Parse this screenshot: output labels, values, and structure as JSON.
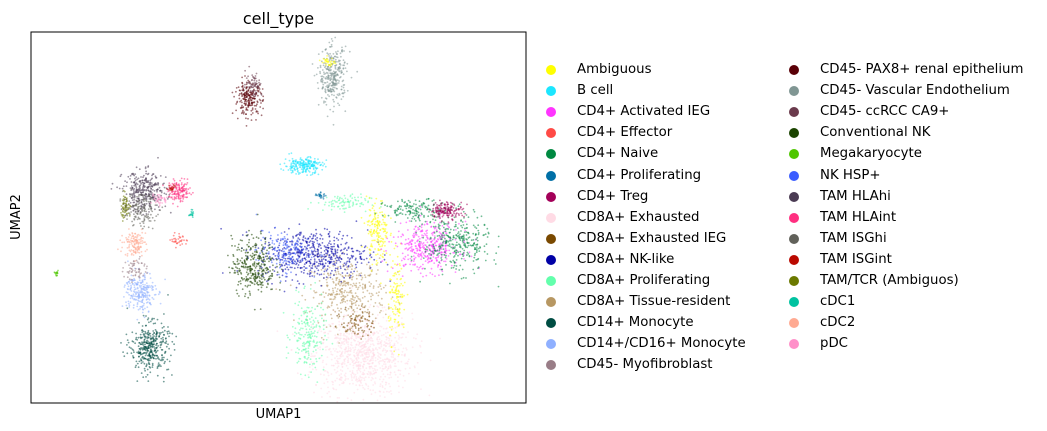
{
  "chart_data": {
    "type": "scatter",
    "title": "cell_type",
    "xlabel": "UMAP1",
    "ylabel": "UMAP2",
    "grid": false,
    "legend_position": "right",
    "xlim": [
      0,
      100
    ],
    "ylim": [
      0,
      100
    ],
    "legend": [
      {
        "name": "Ambiguous",
        "color": "#ffff00"
      },
      {
        "name": "B cell",
        "color": "#1ce6ff"
      },
      {
        "name": "CD4+ Activated IEG",
        "color": "#ff34ff"
      },
      {
        "name": "CD4+ Effector",
        "color": "#ff4a46"
      },
      {
        "name": "CD4+ Naive",
        "color": "#008941"
      },
      {
        "name": "CD4+ Proliferating",
        "color": "#006fa6"
      },
      {
        "name": "CD4+ Treg",
        "color": "#a30059"
      },
      {
        "name": "CD8A+ Exhausted",
        "color": "#ffdbe5"
      },
      {
        "name": "CD8A+ Exhausted IEG",
        "color": "#7a4900"
      },
      {
        "name": "CD8A+ NK-like",
        "color": "#0000a6"
      },
      {
        "name": "CD8A+ Proliferating",
        "color": "#63ffac"
      },
      {
        "name": "CD8A+ Tissue-resident",
        "color": "#b79762"
      },
      {
        "name": "CD14+ Monocyte",
        "color": "#004d43"
      },
      {
        "name": "CD14+/CD16+ Monocyte",
        "color": "#8fb0ff"
      },
      {
        "name": "CD45- Myofibroblast",
        "color": "#997d87"
      },
      {
        "name": "CD45- PAX8+ renal epithelium",
        "color": "#5a0007"
      },
      {
        "name": "CD45- Vascular Endothelium",
        "color": "#809693"
      },
      {
        "name": "CD45- ccRCC CA9+",
        "color": "#6a3a4c"
      },
      {
        "name": "Conventional NK",
        "color": "#1b4400"
      },
      {
        "name": "Megakaryocyte",
        "color": "#4fc601"
      },
      {
        "name": "NK HSP+",
        "color": "#3b5dff"
      },
      {
        "name": "TAM HLAhi",
        "color": "#4a3b53"
      },
      {
        "name": "TAM HLAint",
        "color": "#ff2f80"
      },
      {
        "name": "TAM ISGhi",
        "color": "#61615a"
      },
      {
        "name": "TAM ISGint",
        "color": "#ba0900"
      },
      {
        "name": "TAM/TCR (Ambiguos)",
        "color": "#6b7900"
      },
      {
        "name": "cDC1",
        "color": "#00c2a0"
      },
      {
        "name": "cDC2",
        "color": "#ffaa92"
      },
      {
        "name": "pDC",
        "color": "#ff90c9"
      }
    ],
    "clusters": [
      {
        "type": "CD8A+ Exhausted",
        "cx": 67,
        "cy": 13,
        "rx": 9,
        "ry": 10,
        "n": 900
      },
      {
        "type": "CD8A+ Tissue-resident",
        "cx": 64,
        "cy": 30,
        "rx": 7,
        "ry": 8,
        "n": 350
      },
      {
        "type": "CD8A+ Proliferating",
        "cx": 56,
        "cy": 18,
        "rx": 3,
        "ry": 9,
        "n": 200
      },
      {
        "type": "CD8A+ Proliferating",
        "cx": 63,
        "cy": 54,
        "rx": 5,
        "ry": 2,
        "n": 90
      },
      {
        "type": "CD8A+ NK-like",
        "cx": 57,
        "cy": 40,
        "rx": 10,
        "ry": 6,
        "n": 550
      },
      {
        "type": "NK HSP+",
        "cx": 51,
        "cy": 41,
        "rx": 5,
        "ry": 5,
        "n": 150
      },
      {
        "type": "Conventional NK",
        "cx": 45,
        "cy": 37,
        "rx": 4,
        "ry": 7,
        "n": 330
      },
      {
        "type": "Ambiguous",
        "cx": 70,
        "cy": 46,
        "rx": 2,
        "ry": 8,
        "n": 170
      },
      {
        "type": "Ambiguous",
        "cx": 74,
        "cy": 28,
        "rx": 1.6,
        "ry": 10,
        "n": 120
      },
      {
        "type": "CD4+ Activated IEG",
        "cx": 80,
        "cy": 42,
        "rx": 6,
        "ry": 6,
        "n": 380
      },
      {
        "type": "CD4+ Naive",
        "cx": 86,
        "cy": 43,
        "rx": 6,
        "ry": 7,
        "n": 330
      },
      {
        "type": "CD4+ Naive",
        "cx": 78,
        "cy": 52,
        "rx": 6,
        "ry": 2.5,
        "n": 150
      },
      {
        "type": "CD4+ Treg",
        "cx": 84,
        "cy": 52,
        "rx": 3,
        "ry": 2,
        "n": 160
      },
      {
        "type": "CD4+ Proliferating",
        "cx": 58.5,
        "cy": 56,
        "rx": 1,
        "ry": 0.8,
        "n": 25
      },
      {
        "type": "B cell",
        "cx": 55,
        "cy": 64,
        "rx": 3.5,
        "ry": 2,
        "n": 220
      },
      {
        "type": "CD45- PAX8+ renal epithelium",
        "cx": 44,
        "cy": 82,
        "rx": 2.5,
        "ry": 4,
        "n": 220
      },
      {
        "type": "CD45- ccRCC CA9+",
        "cx": 45,
        "cy": 86,
        "rx": 1.5,
        "ry": 3,
        "n": 70
      },
      {
        "type": "CD45- Vascular Endothelium",
        "cx": 61,
        "cy": 88,
        "rx": 2.5,
        "ry": 7,
        "n": 320
      },
      {
        "type": "Ambiguous",
        "cx": 60,
        "cy": 92,
        "rx": 1.2,
        "ry": 1,
        "n": 30
      },
      {
        "type": "TAM HLAhi",
        "cx": 23,
        "cy": 57,
        "rx": 4,
        "ry": 5,
        "n": 320
      },
      {
        "type": "TAM HLAint",
        "cx": 30,
        "cy": 57,
        "rx": 2,
        "ry": 2.5,
        "n": 140
      },
      {
        "type": "TAM/TCR (Ambiguos)",
        "cx": 19,
        "cy": 53,
        "rx": 1,
        "ry": 3,
        "n": 60
      },
      {
        "type": "cDC2",
        "cx": 21,
        "cy": 43,
        "rx": 2,
        "ry": 3,
        "n": 130
      },
      {
        "type": "CD14+/CD16+ Monocyte",
        "cx": 22,
        "cy": 30,
        "rx": 2.8,
        "ry": 5,
        "n": 230
      },
      {
        "type": "CD14+ Monocyte",
        "cx": 24,
        "cy": 15,
        "rx": 3.5,
        "ry": 6,
        "n": 380
      },
      {
        "type": "TAM ISGhi",
        "cx": 22,
        "cy": 52,
        "rx": 3,
        "ry": 4,
        "n": 140
      },
      {
        "type": "cDC1",
        "cx": 32.5,
        "cy": 51,
        "rx": 0.5,
        "ry": 0.8,
        "n": 18
      },
      {
        "type": "Megakaryocyte",
        "cx": 5,
        "cy": 35,
        "rx": 0.4,
        "ry": 0.6,
        "n": 15
      },
      {
        "type": "CD45- Myofibroblast",
        "cx": 21,
        "cy": 36,
        "rx": 2,
        "ry": 3,
        "n": 60
      },
      {
        "type": "CD4+ Effector",
        "cx": 30,
        "cy": 44,
        "rx": 1.5,
        "ry": 1.5,
        "n": 35
      },
      {
        "type": "pDC",
        "cx": 26,
        "cy": 55,
        "rx": 1.5,
        "ry": 1.5,
        "n": 40
      },
      {
        "type": "TAM ISGint",
        "cx": 28.5,
        "cy": 58,
        "rx": 0.8,
        "ry": 0.8,
        "n": 20
      },
      {
        "type": "CD8A+ Exhausted IEG",
        "cx": 66,
        "cy": 22,
        "rx": 3,
        "ry": 4,
        "n": 80
      }
    ]
  }
}
